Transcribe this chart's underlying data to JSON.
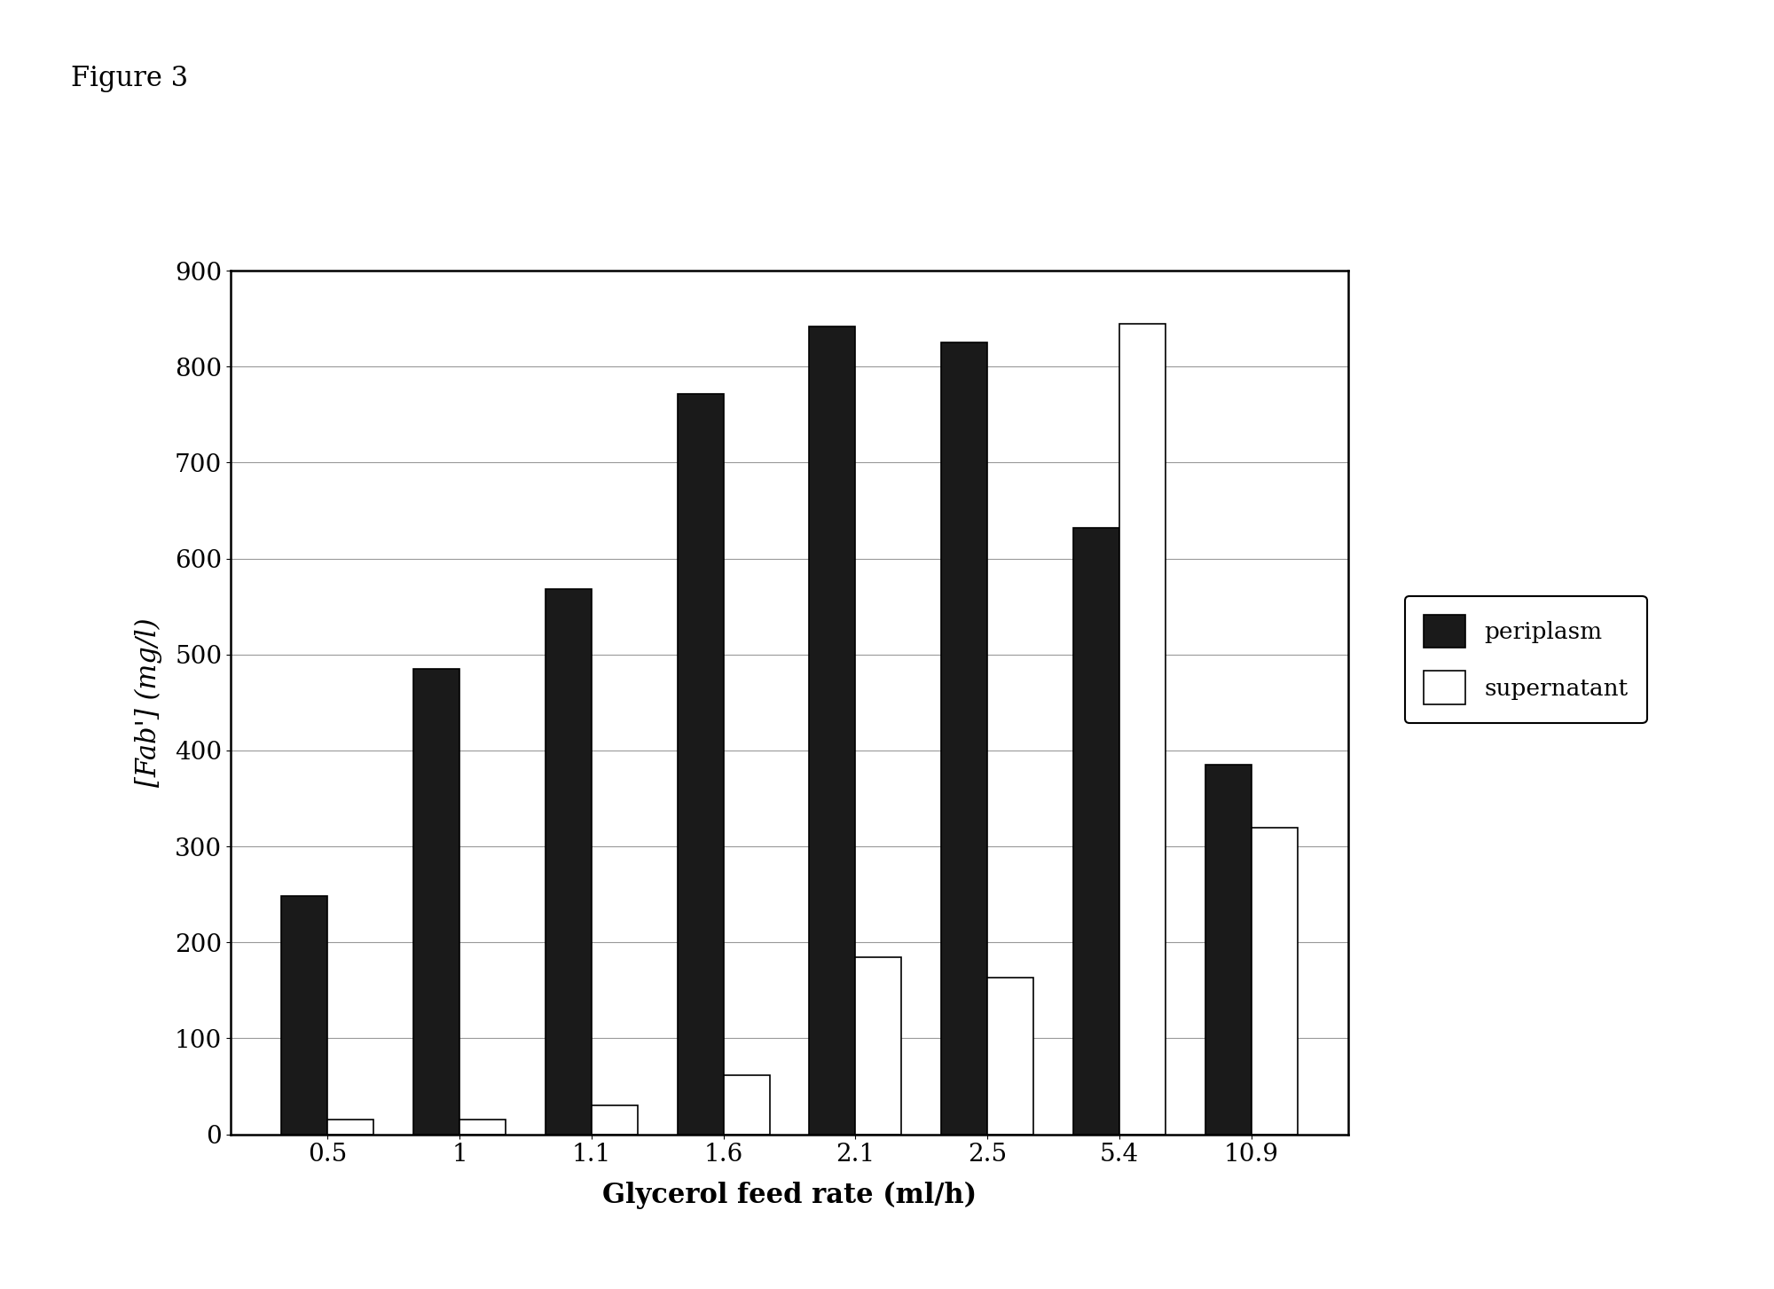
{
  "categories": [
    "0.5",
    "1",
    "1.1",
    "1.6",
    "2.1",
    "2.5",
    "5.4",
    "10.9"
  ],
  "periplasm": [
    248,
    485,
    568,
    772,
    842,
    825,
    632,
    385
  ],
  "supernatant": [
    15,
    15,
    30,
    62,
    185,
    163,
    845,
    320
  ],
  "periplasm_color": "#1a1a1a",
  "supernatant_color": "#ffffff",
  "bar_edge_color": "#000000",
  "xlabel": "Glycerol feed rate (ml/h)",
  "ylabel": "[Fab'] (mg/l)",
  "ylim": [
    0,
    900
  ],
  "yticks": [
    0,
    100,
    200,
    300,
    400,
    500,
    600,
    700,
    800,
    900
  ],
  "figure_label": "Figure 3",
  "legend_periplasm": "periplasm",
  "legend_supernatant": "supernatant",
  "background_color": "#ffffff",
  "bar_width": 0.35,
  "figure_width": 20.0,
  "figure_height": 14.53,
  "dpi": 100
}
